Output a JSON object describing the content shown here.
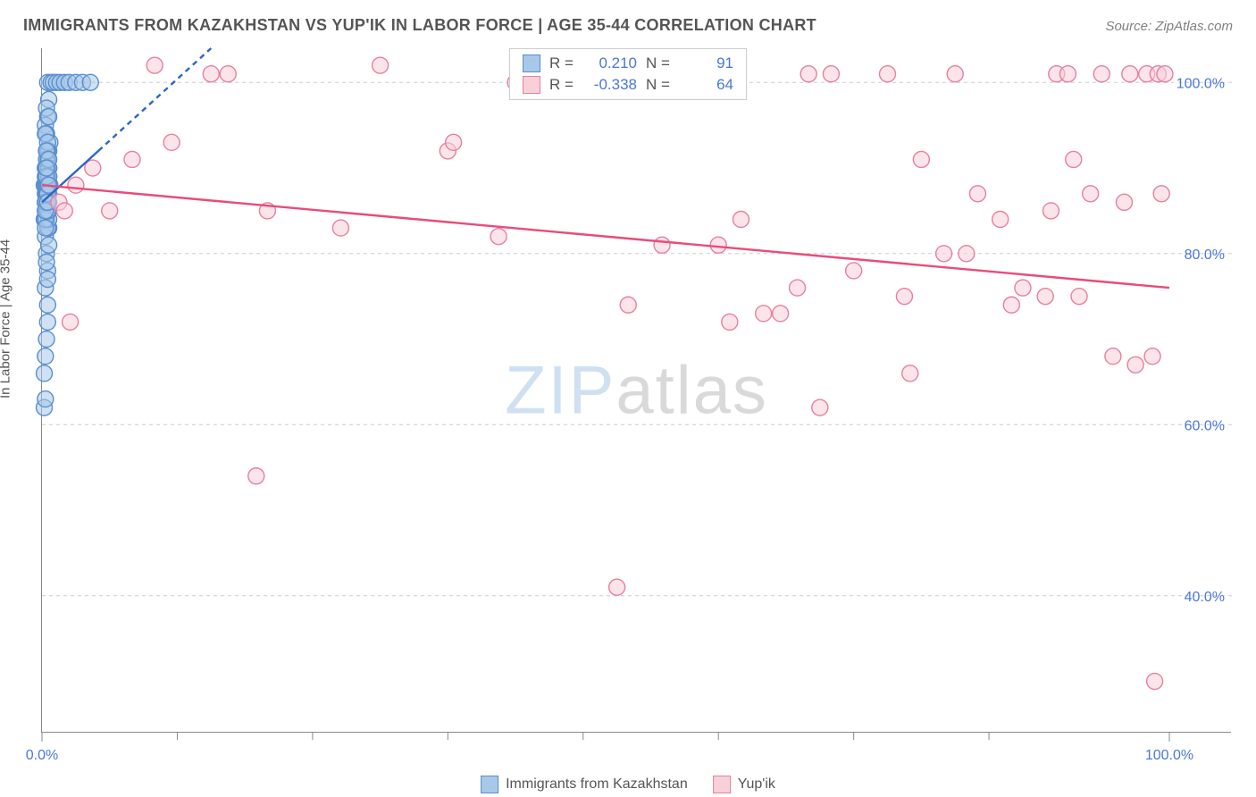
{
  "title": "IMMIGRANTS FROM KAZAKHSTAN VS YUP'IK IN LABOR FORCE | AGE 35-44 CORRELATION CHART",
  "source_label": "Source: ZipAtlas.com",
  "y_axis_label": "In Labor Force | Age 35-44",
  "watermark": {
    "part1": "ZIP",
    "part2": "atlas"
  },
  "chart": {
    "type": "scatter",
    "background_color": "#ffffff",
    "grid_color": "#cccccc",
    "xlim": [
      0,
      100
    ],
    "ylim": [
      24,
      104
    ],
    "x_ticks_major": [
      0,
      100
    ],
    "x_ticks_minor": [
      12,
      24,
      36,
      48,
      60,
      72,
      84
    ],
    "x_tick_labels": {
      "0": "0.0%",
      "100": "100.0%"
    },
    "y_ticks": [
      40,
      60,
      80,
      100
    ],
    "y_tick_labels": {
      "40": "40.0%",
      "60": "60.0%",
      "80": "80.0%",
      "100": "100.0%"
    },
    "marker_radius": 9,
    "marker_stroke_width": 1.4,
    "trend_line_width": 2.4,
    "series": [
      {
        "key": "kazakhstan",
        "label": "Immigrants from Kazakhstan",
        "fill": "#a8c8e8",
        "stroke": "#5a8ecf",
        "fill_opacity": 0.55,
        "trend_color": "#2b66c4",
        "trend": {
          "x1": 0,
          "y1": 86,
          "x2_solid": 5,
          "y2_solid": 92,
          "x2_dash": 15,
          "y2_dash": 104
        },
        "points": [
          [
            0.2,
            88
          ],
          [
            0.3,
            86
          ],
          [
            0.4,
            87
          ],
          [
            0.5,
            89
          ],
          [
            0.3,
            90
          ],
          [
            0.6,
            85
          ],
          [
            0.4,
            92
          ],
          [
            0.7,
            88
          ],
          [
            0.2,
            84
          ],
          [
            0.5,
            100
          ],
          [
            0.8,
            100
          ],
          [
            1.0,
            100
          ],
          [
            1.3,
            100
          ],
          [
            1.6,
            100
          ],
          [
            2.0,
            100
          ],
          [
            2.4,
            100
          ],
          [
            3.0,
            100
          ],
          [
            3.6,
            100
          ],
          [
            4.3,
            100
          ],
          [
            0.3,
            82
          ],
          [
            0.4,
            80
          ],
          [
            0.5,
            78
          ],
          [
            0.6,
            83
          ],
          [
            0.3,
            76
          ],
          [
            0.5,
            74
          ],
          [
            0.4,
            86
          ],
          [
            0.6,
            90
          ],
          [
            0.2,
            66
          ],
          [
            0.3,
            68
          ],
          [
            0.4,
            94
          ],
          [
            0.5,
            96
          ],
          [
            0.6,
            98
          ],
          [
            0.7,
            93
          ],
          [
            0.3,
            95
          ],
          [
            0.4,
            97
          ],
          [
            0.5,
            91
          ],
          [
            0.6,
            89
          ],
          [
            0.4,
            84
          ],
          [
            0.5,
            86
          ],
          [
            0.3,
            88
          ],
          [
            0.6,
            92
          ],
          [
            0.4,
            94
          ],
          [
            0.2,
            62
          ],
          [
            0.3,
            63
          ],
          [
            0.4,
            70
          ],
          [
            0.5,
            72
          ],
          [
            0.6,
            81
          ],
          [
            0.4,
            79
          ],
          [
            0.5,
            77
          ],
          [
            0.3,
            85
          ],
          [
            0.4,
            87
          ],
          [
            0.5,
            83
          ],
          [
            0.6,
            86
          ],
          [
            0.4,
            89
          ],
          [
            0.5,
            92
          ],
          [
            0.3,
            94
          ],
          [
            0.6,
            96
          ],
          [
            0.4,
            88
          ],
          [
            0.5,
            90
          ],
          [
            0.3,
            86
          ],
          [
            0.6,
            88
          ],
          [
            0.4,
            85
          ],
          [
            0.5,
            87
          ],
          [
            0.3,
            89
          ],
          [
            0.6,
            84
          ],
          [
            0.4,
            86
          ],
          [
            0.5,
            88
          ],
          [
            0.3,
            90
          ],
          [
            0.6,
            87
          ],
          [
            0.4,
            91
          ],
          [
            0.5,
            93
          ],
          [
            0.3,
            87
          ],
          [
            0.6,
            85
          ],
          [
            0.4,
            88
          ],
          [
            0.5,
            86
          ],
          [
            0.3,
            84
          ],
          [
            0.6,
            90
          ],
          [
            0.4,
            92
          ],
          [
            0.5,
            85
          ],
          [
            0.3,
            83
          ],
          [
            0.6,
            89
          ],
          [
            0.4,
            87
          ],
          [
            0.5,
            88
          ],
          [
            0.3,
            86
          ],
          [
            0.6,
            91
          ],
          [
            0.4,
            89
          ],
          [
            0.5,
            87
          ],
          [
            0.3,
            85
          ],
          [
            0.6,
            88
          ],
          [
            0.4,
            90
          ],
          [
            0.5,
            86
          ]
        ]
      },
      {
        "key": "yupik",
        "label": "Yup'ik",
        "fill": "#f7d0da",
        "stroke": "#e87ea0",
        "fill_opacity": 0.55,
        "trend_color": "#e94b7a",
        "trend": {
          "x1": 0,
          "y1": 88,
          "x2_solid": 100,
          "y2_solid": 76,
          "x2_dash": 100,
          "y2_dash": 76
        },
        "points": [
          [
            1.5,
            86
          ],
          [
            2.0,
            85
          ],
          [
            2.5,
            72
          ],
          [
            3.0,
            88
          ],
          [
            4.5,
            90
          ],
          [
            6.0,
            85
          ],
          [
            8.0,
            91
          ],
          [
            10.0,
            102
          ],
          [
            11.5,
            93
          ],
          [
            15.0,
            101
          ],
          [
            16.5,
            101
          ],
          [
            20.0,
            85
          ],
          [
            26.5,
            83
          ],
          [
            30.0,
            102
          ],
          [
            36.0,
            92
          ],
          [
            36.5,
            93
          ],
          [
            40.5,
            82
          ],
          [
            42.0,
            100
          ],
          [
            51.0,
            41
          ],
          [
            52.0,
            74
          ],
          [
            55.0,
            81
          ],
          [
            56.0,
            101
          ],
          [
            57.5,
            102
          ],
          [
            59.0,
            100
          ],
          [
            60.0,
            81
          ],
          [
            61.0,
            72
          ],
          [
            62.0,
            84
          ],
          [
            64.0,
            73
          ],
          [
            65.5,
            73
          ],
          [
            67.0,
            76
          ],
          [
            68.0,
            101
          ],
          [
            69.0,
            62
          ],
          [
            70.0,
            101
          ],
          [
            72.0,
            78
          ],
          [
            75.0,
            101
          ],
          [
            76.5,
            75
          ],
          [
            77.0,
            66
          ],
          [
            78.0,
            91
          ],
          [
            80.0,
            80
          ],
          [
            81.0,
            101
          ],
          [
            82.0,
            80
          ],
          [
            83.0,
            87
          ],
          [
            85.0,
            84
          ],
          [
            86.0,
            74
          ],
          [
            87.0,
            76
          ],
          [
            89.0,
            75
          ],
          [
            89.5,
            85
          ],
          [
            90.0,
            101
          ],
          [
            91.0,
            101
          ],
          [
            91.5,
            91
          ],
          [
            92.0,
            75
          ],
          [
            93.0,
            87
          ],
          [
            94.0,
            101
          ],
          [
            95.0,
            68
          ],
          [
            96.0,
            86
          ],
          [
            96.5,
            101
          ],
          [
            97.0,
            67
          ],
          [
            98.0,
            101
          ],
          [
            98.5,
            68
          ],
          [
            99.0,
            101
          ],
          [
            99.3,
            87
          ],
          [
            99.6,
            101
          ],
          [
            98.7,
            30
          ],
          [
            19.0,
            54
          ]
        ]
      }
    ]
  },
  "stats_box": {
    "rows": [
      {
        "swatch_fill": "#a8c8e8",
        "swatch_stroke": "#5a8ecf",
        "r_label": "R =",
        "r_value": "0.210",
        "n_label": "N =",
        "n_value": "91"
      },
      {
        "swatch_fill": "#f7d0da",
        "swatch_stroke": "#e87ea0",
        "r_label": "R =",
        "r_value": "-0.338",
        "n_label": "N =",
        "n_value": "64"
      }
    ]
  },
  "bottom_legend": [
    {
      "swatch_fill": "#a8c8e8",
      "swatch_stroke": "#5a8ecf",
      "label": "Immigrants from Kazakhstan"
    },
    {
      "swatch_fill": "#f7d0da",
      "swatch_stroke": "#e87ea0",
      "label": "Yup'ik"
    }
  ]
}
